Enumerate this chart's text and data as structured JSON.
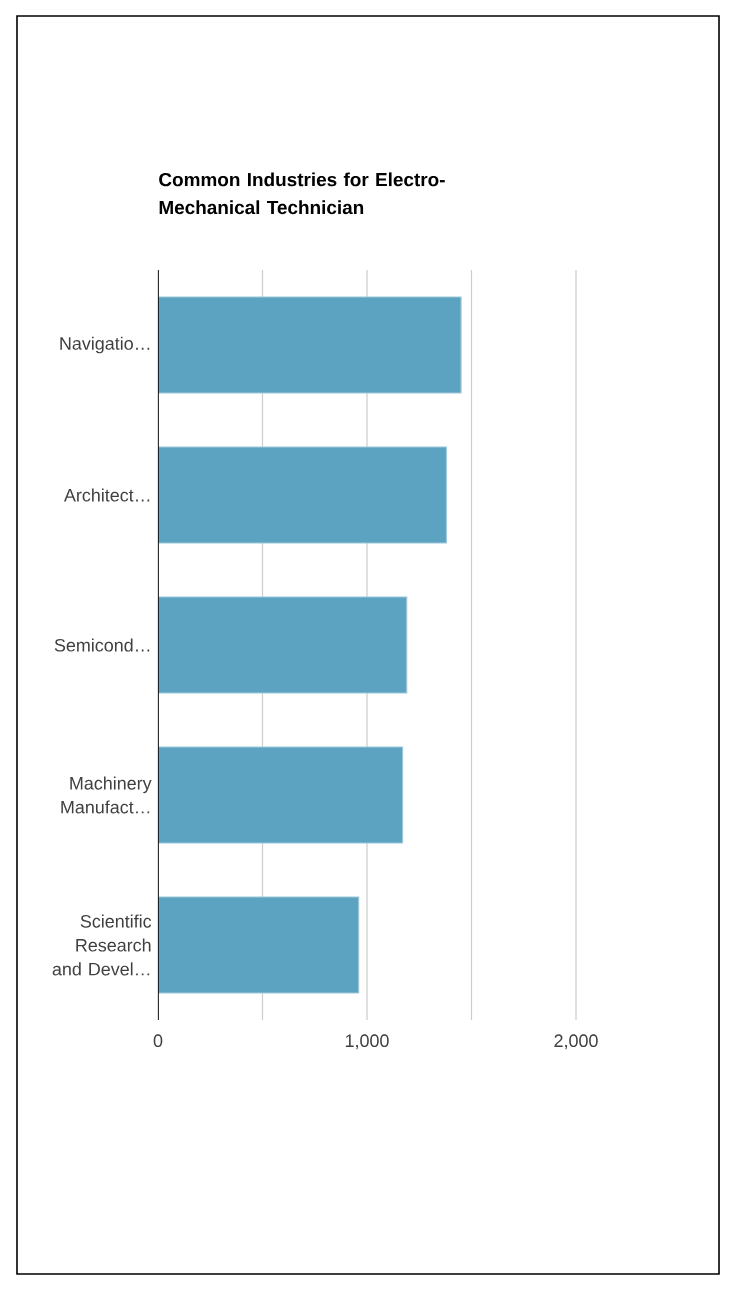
{
  "chart_data": {
    "type": "bar",
    "orientation": "horizontal",
    "title": "Common Industries for Electro-Mechanical Technician",
    "categories": [
      "Navigatio…",
      "Architect…",
      "Semicond…",
      "Machinery Manufact…",
      "Scientific Research and Devel…"
    ],
    "values": [
      1450,
      1380,
      1190,
      1170,
      960
    ],
    "color": "#5ba3c1",
    "xlim": [
      0,
      2000
    ],
    "xticks": [
      0,
      {
        "value": 500,
        "label": null
      },
      {
        "value": 1000,
        "label": "1,000"
      },
      {
        "value": 1500,
        "label": null
      },
      {
        "value": 2000,
        "label": "2,000"
      }
    ],
    "grid": "x"
  }
}
